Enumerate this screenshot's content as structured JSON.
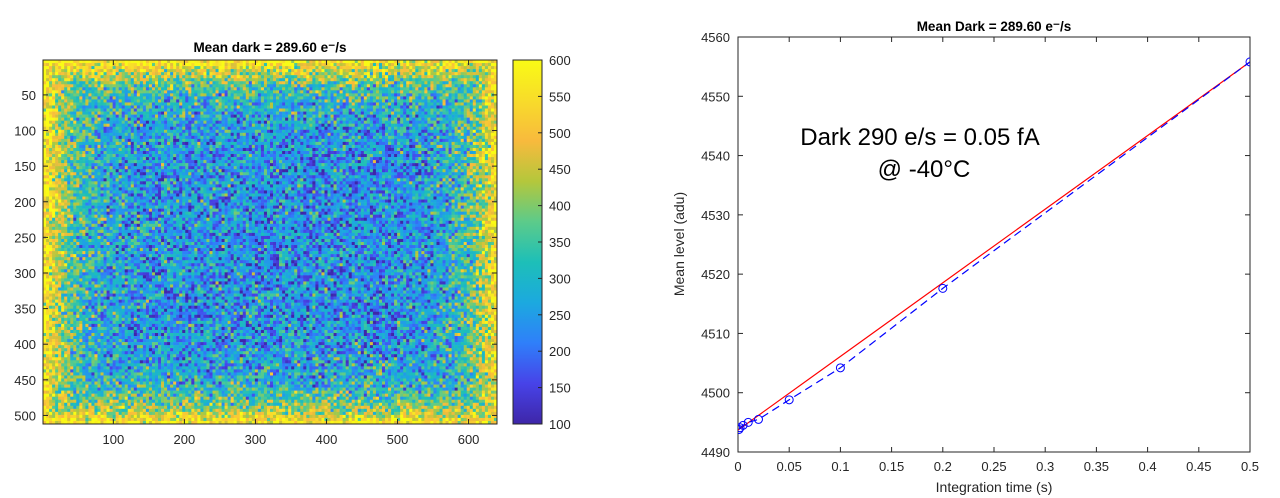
{
  "chart_data": [
    {
      "type": "heatmap",
      "title": "Mean dark =  289.60 e⁻/s",
      "xlim": [
        1,
        640
      ],
      "ylim": [
        1,
        512
      ],
      "y_reversed": true,
      "xticks": [
        100,
        200,
        300,
        400,
        500,
        600
      ],
      "yticks": [
        50,
        100,
        150,
        200,
        250,
        300,
        350,
        400,
        450,
        500
      ],
      "colorbar": {
        "range": [
          100,
          600
        ],
        "ticks": [
          100,
          150,
          200,
          250,
          300,
          350,
          400,
          450,
          500,
          550,
          600
        ],
        "colormap": [
          "#3e26a8",
          "#4743e8",
          "#2f7ffa",
          "#1ca9df",
          "#1dbfb8",
          "#5ccb8a",
          "#b4c73c",
          "#f8ba3d",
          "#f8dc2a",
          "#f9fb15"
        ]
      },
      "description_of_field": {
        "center_value": 240,
        "edge_value": 580
      }
    },
    {
      "type": "line",
      "title": "Mean Dark = 289.60 e⁻/s",
      "xlabel": "Integration time (s)",
      "ylabel": "Mean level (adu)",
      "xlim": [
        0,
        0.5
      ],
      "ylim": [
        4490,
        4560
      ],
      "xticks": [
        0,
        0.05,
        0.1,
        0.15,
        0.2,
        0.25,
        0.3,
        0.35,
        0.4,
        0.45,
        0.5
      ],
      "xtick_labels": [
        "0",
        "0.05",
        "0.1",
        "0.15",
        "0.2",
        "0.25",
        "0.3",
        "0.35",
        "0.4",
        "0.45",
        "0.5"
      ],
      "yticks": [
        4490,
        4500,
        4510,
        4520,
        4530,
        4540,
        4550,
        4560
      ],
      "grid": false,
      "series": [
        {
          "style": "blue-dashed-circles",
          "color": "#0000ff",
          "x": [
            0.001,
            0.002,
            0.005,
            0.01,
            0.02,
            0.05,
            0.1,
            0.2,
            0.5
          ],
          "y": [
            4493.8,
            4494.1,
            4494.5,
            4495.0,
            4495.5,
            4498.8,
            4504.2,
            4517.6,
            4555.8
          ]
        },
        {
          "style": "red-solid-fit",
          "color": "#ff0000",
          "x": [
            0,
            0.5
          ],
          "y": [
            4493.7,
            4555.8
          ]
        }
      ],
      "annotation": [
        "Dark 290 e/s = 0.05 fA",
        "@ -40°C"
      ]
    }
  ]
}
